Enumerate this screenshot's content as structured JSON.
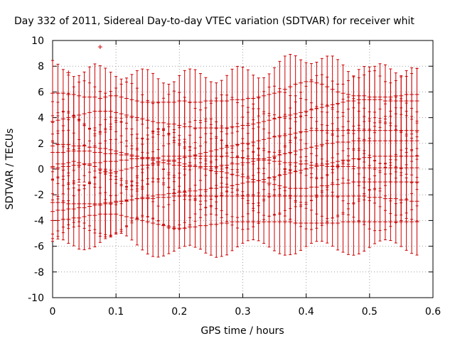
{
  "chart_data": {
    "type": "scatter",
    "title": "Day 332 of 2011, Sidereal Day-to-day VTEC variation (SDTVAR) for receiver whit",
    "xlabel": "GPS time / hours",
    "ylabel": "SDTVAR / TECUs",
    "xlim": [
      0,
      0.6
    ],
    "ylim": [
      -10,
      10
    ],
    "xticks": [
      0,
      0.1,
      0.2,
      0.3,
      0.4,
      0.5,
      0.6
    ],
    "xtick_labels": [
      "0",
      "0.1",
      "0.2",
      "0.3",
      "0.4",
      "0.5",
      "0.6"
    ],
    "yticks": [
      -10,
      -8,
      -6,
      -4,
      -2,
      0,
      2,
      4,
      6,
      8,
      10
    ],
    "ytick_labels": [
      "-10",
      "-8",
      "-6",
      "-4",
      "-2",
      "0",
      "2",
      "4",
      "6",
      "8",
      "10"
    ],
    "grid": true,
    "marker": "+",
    "color": "#cc0000",
    "x_step": 0.00833,
    "outliers": [
      {
        "x": 0.025,
        "y": 7.5
      },
      {
        "x": 0.075,
        "y": 9.5
      }
    ],
    "series": [
      {
        "name": "s1",
        "errorbar": true,
        "y": [
          0.2,
          0.4,
          0.4,
          0.5,
          0.6,
          0.5,
          0.4,
          0.3,
          0.2,
          0.0,
          -0.2,
          -0.3,
          -0.2,
          -0.1,
          0.0,
          0.1,
          0.2,
          0.3,
          0.3,
          0.4,
          0.5,
          0.5,
          0.6,
          0.7,
          0.8,
          0.9,
          1.0,
          1.1,
          1.2,
          1.3,
          1.4,
          1.5,
          1.6,
          1.7,
          1.8,
          1.9,
          2.0,
          2.0,
          2.1,
          2.2,
          2.3,
          2.4,
          2.5,
          2.6,
          2.6,
          2.7,
          2.8,
          2.9,
          2.9,
          3.0,
          3.0,
          3.0,
          3.0,
          3.0,
          3.0,
          3.0,
          3.0,
          3.0,
          3.0,
          3.0,
          3.0,
          3.0,
          3.0,
          3.0,
          3.0,
          3.0,
          3.0,
          3.0,
          3.0,
          3.0
        ]
      },
      {
        "name": "s2",
        "errorbar": true,
        "y": [
          -3.3,
          -3.2,
          -3.2,
          -3.1,
          -3.1,
          -3.0,
          -3.0,
          -2.9,
          -2.8,
          -2.8,
          -2.7,
          -2.7,
          -2.6,
          -2.5,
          -2.5,
          -2.4,
          -2.3,
          -2.2,
          -2.2,
          -2.1,
          -2.0,
          -2.0,
          -1.9,
          -1.9,
          -1.8,
          -1.8,
          -1.7,
          -1.7,
          -1.6,
          -1.6,
          -1.5,
          -1.5,
          -1.4,
          -1.4,
          -1.3,
          -1.2,
          -1.1,
          -1.0,
          -1.0,
          -0.9,
          -0.8,
          -0.7,
          -0.6,
          -0.5,
          -0.4,
          -0.3,
          -0.2,
          -0.1,
          0.0,
          0.1,
          0.2,
          0.3,
          0.4,
          0.5,
          0.6,
          0.7,
          0.7,
          0.8,
          0.8,
          0.9,
          0.9,
          1.0,
          1.0,
          1.0,
          1.0,
          1.0,
          1.0,
          1.0,
          1.0,
          1.0
        ]
      },
      {
        "name": "s3",
        "errorbar": true,
        "y": [
          5.9,
          5.9,
          5.9,
          5.8,
          5.8,
          5.7,
          5.6,
          5.6,
          5.6,
          5.5,
          5.6,
          5.7,
          5.7,
          5.6,
          5.5,
          5.4,
          5.3,
          5.2,
          5.2,
          5.2,
          5.2,
          5.2,
          5.2,
          5.2,
          5.3,
          5.3,
          5.2,
          5.2,
          5.2,
          5.3,
          5.3,
          5.3,
          5.3,
          5.3,
          5.4,
          5.4,
          5.4,
          5.5,
          5.5,
          5.6,
          5.7,
          5.8,
          5.9,
          6.0,
          6.2,
          6.4,
          6.6,
          6.7,
          6.8,
          6.8,
          6.7,
          6.6,
          6.4,
          6.2,
          6.0,
          5.9,
          5.8,
          5.7,
          5.7,
          5.7,
          5.6,
          5.6,
          5.6,
          5.6,
          5.6,
          5.7,
          5.7,
          5.8,
          5.8,
          5.8
        ]
      },
      {
        "name": "s4",
        "errorbar": true,
        "y": [
          -4.0,
          -4.0,
          -3.9,
          -3.9,
          -3.8,
          -3.8,
          -3.7,
          -3.6,
          -3.6,
          -3.5,
          -3.5,
          -3.5,
          -3.5,
          -3.6,
          -3.7,
          -3.8,
          -3.9,
          -4.0,
          -4.1,
          -4.2,
          -4.3,
          -4.4,
          -4.5,
          -4.6,
          -4.6,
          -4.6,
          -4.5,
          -4.5,
          -4.4,
          -4.4,
          -4.3,
          -4.3,
          -4.2,
          -4.2,
          -4.1,
          -4.1,
          -4.1,
          -4.1,
          -4.1,
          -4.1,
          -4.1,
          -4.1,
          -4.1,
          -4.1,
          -4.1,
          -4.1,
          -4.2,
          -4.2,
          -4.2,
          -4.2,
          -4.2,
          -4.2,
          -4.2,
          -4.2,
          -4.2,
          -4.1,
          -4.1,
          -4.1,
          -4.1,
          -4.1,
          -4.1,
          -4.1,
          -4.1,
          -4.1,
          -4.1,
          -4.1,
          -4.1,
          -4.1,
          -4.1,
          -4.1
        ]
      },
      {
        "name": "s5",
        "errorbar": true,
        "y": [
          3.7,
          3.8,
          3.9,
          4.0,
          4.1,
          4.2,
          4.3,
          4.4,
          4.5,
          4.5,
          4.5,
          4.5,
          4.4,
          4.3,
          4.2,
          4.1,
          4.0,
          3.9,
          3.8,
          3.7,
          3.6,
          3.6,
          3.5,
          3.5,
          3.4,
          3.3,
          3.3,
          3.2,
          3.2,
          3.2,
          3.2,
          3.2,
          3.2,
          3.2,
          3.3,
          3.3,
          3.4,
          3.4,
          3.5,
          3.6,
          3.7,
          3.8,
          3.9,
          4.0,
          4.1,
          4.2,
          4.3,
          4.4,
          4.5,
          4.6,
          4.7,
          4.8,
          4.9,
          5.0,
          5.1,
          5.2,
          5.3,
          5.3,
          5.4,
          5.4,
          5.4,
          5.4,
          5.4,
          5.3,
          5.3,
          5.3,
          5.3,
          5.3,
          5.3,
          5.3
        ]
      },
      {
        "name": "s6",
        "errorbar": true,
        "y": [
          1.3,
          1.3,
          1.3,
          1.4,
          1.4,
          1.4,
          1.4,
          1.4,
          1.3,
          1.3,
          1.2,
          1.2,
          1.2,
          1.1,
          1.1,
          1.0,
          1.0,
          0.9,
          0.9,
          0.8,
          0.8,
          0.7,
          0.7,
          0.6,
          0.5,
          0.4,
          0.3,
          0.2,
          0.1,
          0.0,
          -0.1,
          -0.2,
          -0.2,
          -0.3,
          -0.4,
          -0.5,
          -0.6,
          -0.7,
          -0.8,
          -0.9,
          -1.0,
          -1.1,
          -1.2,
          -1.3,
          -1.4,
          -1.5,
          -1.5,
          -1.5,
          -1.5,
          -1.4,
          -1.4,
          -1.3,
          -1.3,
          -1.2,
          -1.2,
          -1.1,
          -1.1,
          -1.0,
          -1.0,
          -1.0,
          -1.0,
          -1.0,
          -1.0,
          -1.0,
          -1.0,
          -1.0,
          -1.0,
          -1.0,
          -1.0,
          -1.0
        ]
      },
      {
        "name": "s7",
        "errorbar": true,
        "y": [
          1.8,
          1.9,
          1.9,
          1.9,
          1.8,
          1.8,
          1.8,
          1.7,
          1.7,
          1.6,
          1.6,
          1.5,
          1.4,
          1.3,
          1.2,
          1.1,
          1.0,
          0.9,
          0.8,
          0.7,
          0.6,
          0.5,
          0.4,
          0.3,
          0.3,
          0.2,
          0.2,
          0.2,
          0.2,
          0.2,
          0.2,
          0.2,
          0.3,
          0.3,
          0.4,
          0.4,
          0.5,
          0.5,
          0.6,
          0.7,
          0.8,
          0.9,
          1.0,
          1.1,
          1.2,
          1.3,
          1.4,
          1.5,
          1.6,
          1.7,
          1.8,
          1.9,
          2.0,
          2.0,
          2.1,
          2.1,
          2.1,
          2.2,
          2.2,
          2.2,
          2.2,
          2.2,
          2.2,
          2.2,
          2.2,
          2.2,
          2.2,
          2.2,
          2.2,
          2.2
        ]
      },
      {
        "name": "s8",
        "errorbar": true,
        "y": [
          -2.6,
          -2.6,
          -2.6,
          -2.7,
          -2.7,
          -2.7,
          -2.7,
          -2.7,
          -2.7,
          -2.7,
          -2.6,
          -2.6,
          -2.5,
          -2.5,
          -2.4,
          -2.4,
          -2.3,
          -2.3,
          -2.3,
          -2.3,
          -2.2,
          -2.2,
          -2.2,
          -2.1,
          -2.1,
          -2.1,
          -2.1,
          -2.1,
          -2.1,
          -2.1,
          -2.1,
          -2.1,
          -2.1,
          -2.1,
          -2.1,
          -2.1,
          -2.1,
          -2.1,
          -2.1,
          -2.1,
          -2.1,
          -2.1,
          -2.1,
          -2.1,
          -2.1,
          -2.1,
          -2.1,
          -2.1,
          -2.1,
          -2.1,
          -2.1,
          -2.1,
          -2.1,
          -2.1,
          -2.1,
          -2.1,
          -2.1,
          -2.1,
          -2.1,
          -2.1,
          -2.2,
          -2.2,
          -2.2,
          -2.3,
          -2.3,
          -2.3,
          -2.4,
          -2.4,
          -2.5,
          -2.5
        ]
      },
      {
        "name": "s9",
        "errorbar": false,
        "y": [
          0.1,
          0.1,
          0.2,
          0.2,
          0.3,
          0.3,
          0.4,
          0.4,
          0.5,
          0.5,
          0.6,
          0.6,
          0.6,
          0.7,
          0.7,
          0.8,
          0.8,
          0.8,
          0.9,
          0.9,
          0.9,
          1.0,
          1.0,
          1.0,
          1.0,
          1.0,
          1.0,
          1.0,
          1.0,
          1.0,
          1.0,
          1.0,
          1.0,
          1.0,
          0.9,
          0.9,
          0.9,
          0.8,
          0.8,
          0.8,
          0.7,
          0.7,
          0.6,
          0.6,
          0.5,
          0.5,
          0.5,
          0.4,
          0.4,
          0.3,
          0.3,
          0.3,
          0.2,
          0.2,
          0.2,
          0.2,
          0.2,
          0.2,
          0.1,
          0.1,
          0.1,
          0.1,
          0.1,
          0.1,
          0.1,
          0.1,
          0.1,
          0.1,
          0.1,
          0.1
        ]
      }
    ]
  }
}
